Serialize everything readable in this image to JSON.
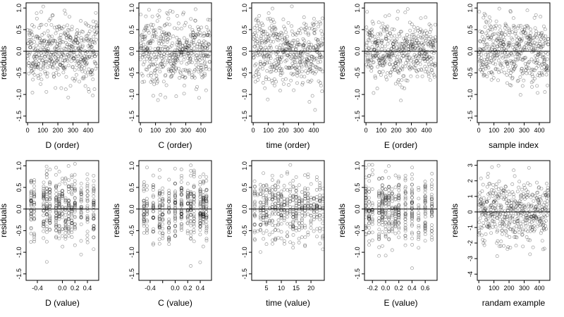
{
  "chart_data": [
    {
      "type": "scatter",
      "xlabel": "D (order)",
      "ylabel": "residuals",
      "xlim": [
        -10,
        470
      ],
      "ylim": [
        -1.65,
        1.12
      ],
      "xticks": [
        0,
        100,
        200,
        300,
        400
      ],
      "xtick_labels": [
        "0",
        "100",
        "200",
        "300",
        "400"
      ],
      "yticks": [
        -1.5,
        -1.0,
        -0.5,
        0.0,
        0.5,
        1.0
      ],
      "ytick_labels": [
        "-1.5",
        "-1.0",
        "-0.5",
        "0.0",
        "0.5",
        "1.0"
      ],
      "gen": {
        "mode": "order",
        "seed": 11,
        "n": 460,
        "sd": 0.38,
        "xmin": 0,
        "xmax": 460
      }
    },
    {
      "type": "scatter",
      "xlabel": "C (order)",
      "ylabel": "residuals",
      "xlim": [
        -10,
        470
      ],
      "ylim": [
        -1.65,
        1.12
      ],
      "xticks": [
        0,
        100,
        200,
        300,
        400
      ],
      "xtick_labels": [
        "0",
        "100",
        "200",
        "300",
        "400"
      ],
      "yticks": [
        -1.5,
        -1.0,
        -0.5,
        0.0,
        0.5,
        1.0
      ],
      "ytick_labels": [
        "-1.5",
        "-1.0",
        "-0.5",
        "0.0",
        "0.5",
        "1.0"
      ],
      "gen": {
        "mode": "order",
        "seed": 22,
        "n": 460,
        "sd": 0.38,
        "xmin": 0,
        "xmax": 460
      }
    },
    {
      "type": "scatter",
      "xlabel": "time (order)",
      "ylabel": "residuals",
      "xlim": [
        -10,
        470
      ],
      "ylim": [
        -1.65,
        1.12
      ],
      "xticks": [
        0,
        100,
        200,
        300,
        400
      ],
      "xtick_labels": [
        "0",
        "100",
        "200",
        "300",
        "400"
      ],
      "yticks": [
        -1.5,
        -1.0,
        -0.5,
        0.0,
        0.5,
        1.0
      ],
      "ytick_labels": [
        "-1.5",
        "-1.0",
        "-0.5",
        "0.0",
        "0.5",
        "1.0"
      ],
      "gen": {
        "mode": "order",
        "seed": 33,
        "n": 460,
        "sd": 0.38,
        "xmin": 0,
        "xmax": 460
      }
    },
    {
      "type": "scatter",
      "xlabel": "E (order)",
      "ylabel": "residuals",
      "xlim": [
        -10,
        470
      ],
      "ylim": [
        -1.65,
        1.12
      ],
      "xticks": [
        0,
        100,
        200,
        300,
        400
      ],
      "xtick_labels": [
        "0",
        "100",
        "200",
        "300",
        "400"
      ],
      "yticks": [
        -1.5,
        -1.0,
        -0.5,
        0.0,
        0.5,
        1.0
      ],
      "ytick_labels": [
        "-1.5",
        "-1.0",
        "-0.5",
        "0.0",
        "0.5",
        "1.0"
      ],
      "gen": {
        "mode": "order",
        "seed": 44,
        "n": 460,
        "sd": 0.38,
        "xmin": 0,
        "xmax": 460
      }
    },
    {
      "type": "scatter",
      "xlabel": "sample index",
      "ylabel": "residuals",
      "xlim": [
        -10,
        470
      ],
      "ylim": [
        -1.65,
        1.12
      ],
      "xticks": [
        0,
        100,
        200,
        300,
        400
      ],
      "xtick_labels": [
        "0",
        "100",
        "200",
        "300",
        "400"
      ],
      "yticks": [
        -1.5,
        -1.0,
        -0.5,
        0.0,
        0.5,
        1.0
      ],
      "ytick_labels": [
        "-1.5",
        "-1.0",
        "-0.5",
        "0.0",
        "0.5",
        "1.0"
      ],
      "gen": {
        "mode": "order",
        "seed": 55,
        "n": 460,
        "sd": 0.38,
        "xmin": 0,
        "xmax": 460
      }
    },
    {
      "type": "scatter",
      "xlabel": "D (value)",
      "ylabel": "residuals",
      "xlim": [
        -0.58,
        0.58
      ],
      "ylim": [
        -1.65,
        1.12
      ],
      "xticks": [
        -0.4,
        0.0,
        0.2,
        0.4
      ],
      "xtick_labels": [
        "-0.4",
        "0.0",
        "0.2",
        "0.4"
      ],
      "yticks": [
        -1.5,
        -1.0,
        -0.5,
        0.0,
        0.5,
        1.0
      ],
      "ytick_labels": [
        "-1.5",
        "-1.0",
        "-0.5",
        "0.0",
        "0.5",
        "1.0"
      ],
      "gen": {
        "mode": "cluster",
        "seed": 66,
        "n": 460,
        "sd": 0.38,
        "xmin": -0.55,
        "xmax": 0.55,
        "centers": [
          -0.5,
          -0.45,
          -0.3,
          -0.25,
          -0.2,
          -0.1,
          -0.05,
          0.0,
          0.05,
          0.1,
          0.15,
          0.2,
          0.3,
          0.4,
          0.5
        ]
      }
    },
    {
      "type": "scatter",
      "xlabel": "C (value)",
      "ylabel": "residuals",
      "xlim": [
        -0.58,
        0.58
      ],
      "ylim": [
        -1.65,
        1.12
      ],
      "xticks": [
        -0.4,
        -0.2,
        0.0,
        0.2,
        0.4
      ],
      "xtick_labels": [
        "-0.4",
        "",
        "0.0",
        "0.2",
        "0.4"
      ],
      "yticks": [
        -1.5,
        -1.0,
        -0.5,
        0.0,
        0.5,
        1.0
      ],
      "ytick_labels": [
        "-1.5",
        "-1.0",
        "-0.5",
        "0.0",
        "0.5",
        "1.0"
      ],
      "gen": {
        "mode": "cluster",
        "seed": 77,
        "n": 460,
        "sd": 0.38,
        "xmin": -0.55,
        "xmax": 0.55,
        "centers": [
          -0.5,
          -0.45,
          -0.35,
          -0.25,
          -0.2,
          -0.1,
          0.0,
          0.1,
          0.2,
          0.25,
          0.3,
          0.4,
          0.45,
          0.5
        ]
      }
    },
    {
      "type": "scatter",
      "xlabel": "time (value)",
      "ylabel": "residuals",
      "xlim": [
        0,
        24.5
      ],
      "ylim": [
        -1.65,
        1.12
      ],
      "xticks": [
        5,
        10,
        15,
        20
      ],
      "xtick_labels": [
        "5",
        "10",
        "15",
        "20"
      ],
      "yticks": [
        -1.5,
        -1.0,
        -0.5,
        0.0,
        0.5,
        1.0
      ],
      "ytick_labels": [
        "-1.5",
        "-1.0",
        "-0.5",
        "0.0",
        "0.5",
        "1.0"
      ],
      "gen": {
        "mode": "cluster",
        "seed": 88,
        "n": 460,
        "sd": 0.38,
        "xmin": 1,
        "xmax": 24,
        "centers": [
          1,
          2,
          3,
          4,
          5,
          6,
          7,
          8,
          9,
          10,
          11,
          12,
          13,
          14,
          15,
          16,
          17,
          18,
          19,
          20,
          21,
          22,
          23,
          24
        ]
      }
    },
    {
      "type": "scatter",
      "xlabel": "E (value)",
      "ylabel": "residuals",
      "xlim": [
        -0.32,
        0.78
      ],
      "ylim": [
        -1.65,
        1.12
      ],
      "xticks": [
        -0.2,
        0.0,
        0.2,
        0.4,
        0.6
      ],
      "xtick_labels": [
        "-0.2",
        "0.0",
        "0.2",
        "0.4",
        "0.6"
      ],
      "yticks": [
        -1.5,
        -1.0,
        -0.5,
        0.0,
        0.5,
        1.0
      ],
      "ytick_labels": [
        "-1.5",
        "-1.0",
        "-0.5",
        "0.0",
        "0.5",
        "1.0"
      ],
      "gen": {
        "mode": "cluster",
        "seed": 99,
        "n": 460,
        "sd": 0.38,
        "xmin": -0.3,
        "xmax": 0.75,
        "centers": [
          -0.3,
          -0.25,
          -0.2,
          -0.1,
          -0.05,
          0.0,
          0.05,
          0.1,
          0.15,
          0.2,
          0.3,
          0.4,
          0.5,
          0.6,
          0.7
        ]
      }
    },
    {
      "type": "scatter",
      "xlabel": "randam example",
      "ylabel": "residuals",
      "xlim": [
        -10,
        470
      ],
      "ylim": [
        -4.4,
        3.3
      ],
      "xticks": [
        0,
        100,
        200,
        300,
        400
      ],
      "xtick_labels": [
        "0",
        "100",
        "200",
        "300",
        "400"
      ],
      "yticks": [
        -4,
        -3,
        -2,
        -1,
        0,
        1,
        2,
        3
      ],
      "ytick_labels": [
        "-4",
        "-3",
        "-2",
        "-1",
        "0",
        "1",
        "2",
        "3"
      ],
      "gen": {
        "mode": "order",
        "seed": 123,
        "n": 460,
        "sd": 1.0,
        "xmin": 0,
        "xmax": 460
      }
    }
  ]
}
